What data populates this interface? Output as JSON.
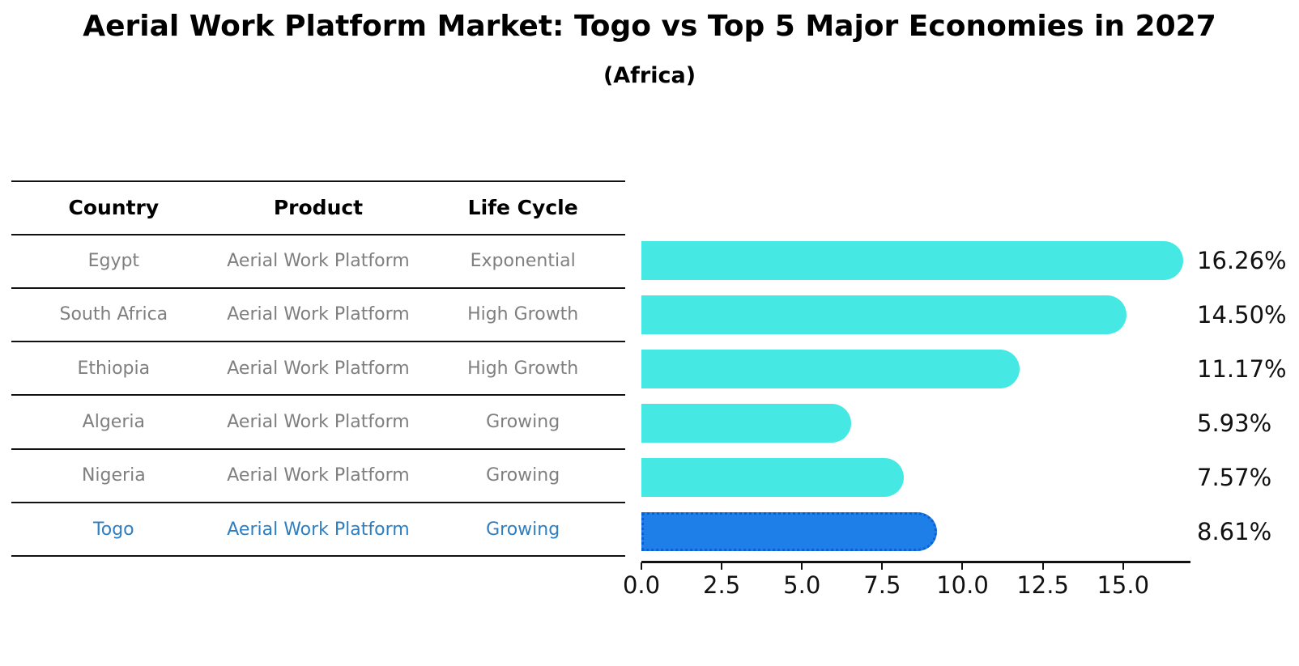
{
  "title": "Aerial Work Platform Market: Togo vs Top 5 Major Economies in 2027",
  "subtitle": "(Africa)",
  "table": {
    "headers": [
      "Country",
      "Product",
      "Life Cycle"
    ],
    "rows": [
      {
        "country": "Egypt",
        "product": "Aerial Work Platform",
        "life_cycle": "Exponential",
        "highlight": false
      },
      {
        "country": "South Africa",
        "product": "Aerial Work Platform",
        "life_cycle": "High Growth",
        "highlight": false
      },
      {
        "country": "Ethiopia",
        "product": "Aerial Work Platform",
        "life_cycle": "High Growth",
        "highlight": false
      },
      {
        "country": "Algeria",
        "product": "Aerial Work Platform",
        "life_cycle": "Growing",
        "highlight": false
      },
      {
        "country": "Nigeria",
        "product": "Aerial Work Platform",
        "life_cycle": "Growing",
        "highlight": false
      },
      {
        "country": "Togo",
        "product": "Aerial Work Platform",
        "life_cycle": "Growing",
        "highlight": true
      }
    ]
  },
  "chart_data": {
    "type": "bar",
    "orientation": "horizontal",
    "categories": [
      "Egypt",
      "South Africa",
      "Ethiopia",
      "Algeria",
      "Nigeria",
      "Togo"
    ],
    "values": [
      16.26,
      14.5,
      11.17,
      5.93,
      7.57,
      8.61
    ],
    "value_labels": [
      "16.26%",
      "14.50%",
      "11.17%",
      "5.93%",
      "7.57%",
      "8.61%"
    ],
    "highlight_index": 5,
    "x_ticks": [
      "0.0",
      "2.5",
      "5.0",
      "7.5",
      "10.0",
      "12.5",
      "15.0"
    ],
    "x_tick_values": [
      0,
      2.5,
      5,
      7.5,
      10,
      12.5,
      15
    ],
    "xlim": [
      0,
      17.1
    ],
    "grid": false,
    "legend": "none",
    "title": "Aerial Work Platform Market: Togo vs Top 5 Major Economies in 2027 (Africa)",
    "xlabel": "",
    "ylabel": ""
  },
  "colors": {
    "bar": "#46e8e4",
    "highlight_bar": "#1e7fe8",
    "highlight_text": "#2e7ec0",
    "row_text": "#7f7f7f",
    "axis": "#111111"
  }
}
